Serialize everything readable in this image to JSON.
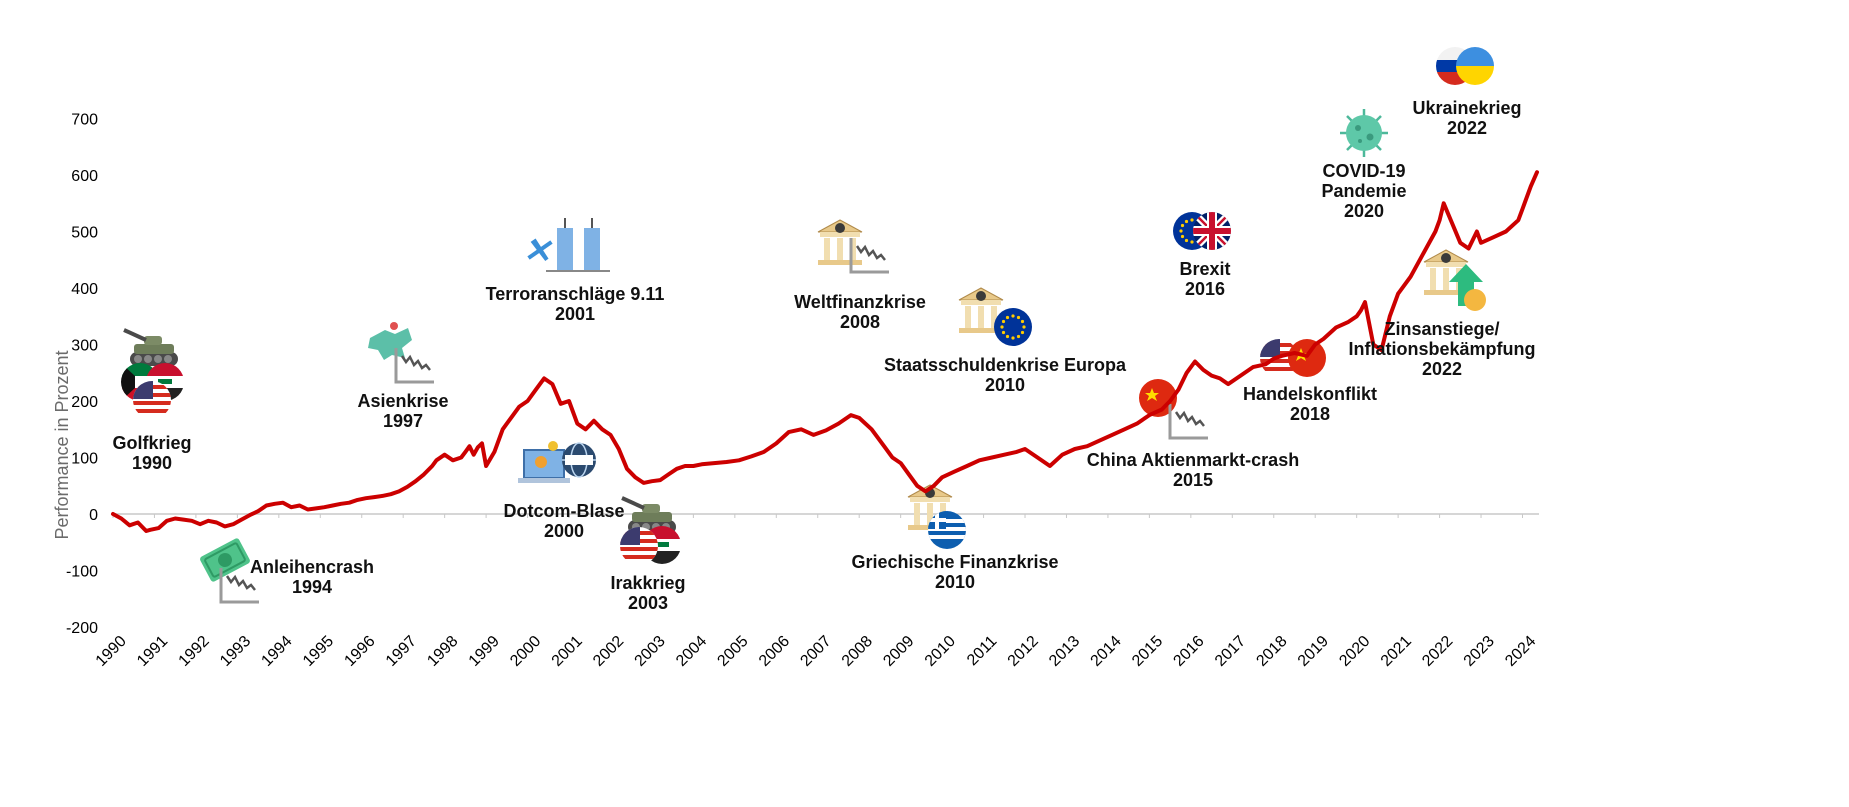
{
  "chart_data": {
    "type": "line",
    "ylabel": "Performance in Prozent",
    "ylim": [
      -200,
      700
    ],
    "yticks": [
      700,
      600,
      500,
      400,
      300,
      200,
      100,
      0,
      -100,
      -200
    ],
    "xlim": [
      1990,
      2024.35
    ],
    "xticks": [
      "1990",
      "1991",
      "1992",
      "1993",
      "1994",
      "1995",
      "1996",
      "1997",
      "1998",
      "1999",
      "2000",
      "2001",
      "2002",
      "2003",
      "2004",
      "2005",
      "2006",
      "2007",
      "2008",
      "2009",
      "2010",
      "2011",
      "2012",
      "2013",
      "2014",
      "2015",
      "2016",
      "2017",
      "2018",
      "2019",
      "2020",
      "2021",
      "2022",
      "2023",
      "2024"
    ],
    "grid": false,
    "line_color": "#cc0000",
    "series": [
      {
        "x": [
          1990.0,
          1990.2,
          1990.4,
          1990.6,
          1990.8,
          1990.9,
          1991.1,
          1991.3,
          1991.5,
          1991.7,
          1991.9,
          1992.1,
          1992.3,
          1992.5,
          1992.7,
          1992.9,
          1993.1,
          1993.3,
          1993.5,
          1993.7,
          1993.9,
          1994.1,
          1994.3,
          1994.5,
          1994.7,
          1994.9,
          1995.1,
          1995.3,
          1995.5,
          1995.7,
          1995.9,
          1996.1,
          1996.3,
          1996.5,
          1996.7,
          1996.9,
          1997.1,
          1997.3,
          1997.5,
          1997.7,
          1997.8,
          1998.0,
          1998.2,
          1998.4,
          1998.5,
          1998.6,
          1998.7,
          1998.8,
          1998.9,
          1999.0,
          1999.2,
          1999.4,
          1999.6,
          1999.8,
          2000.0,
          2000.2,
          2000.4,
          2000.6,
          2000.8,
          2001.0,
          2001.2,
          2001.4,
          2001.6,
          2001.8,
          2002.0,
          2002.2,
          2002.4,
          2002.6,
          2002.8,
          2003.0,
          2003.2,
          2003.4,
          2003.6,
          2003.8,
          2004.0,
          2004.2,
          2004.5,
          2004.8,
          2005.1,
          2005.4,
          2005.7,
          2006.0,
          2006.3,
          2006.6,
          2006.9,
          2007.2,
          2007.5,
          2007.8,
          2008.0,
          2008.3,
          2008.6,
          2008.8,
          2009.0,
          2009.2,
          2009.4,
          2009.6,
          2009.8,
          2010.0,
          2010.3,
          2010.6,
          2010.9,
          2011.2,
          2011.5,
          2011.8,
          2012.0,
          2012.3,
          2012.6,
          2012.9,
          2013.2,
          2013.5,
          2013.8,
          2014.1,
          2014.4,
          2014.7,
          2015.0,
          2015.3,
          2015.5,
          2015.7,
          2015.9,
          2016.1,
          2016.3,
          2016.5,
          2016.7,
          2016.9,
          2017.2,
          2017.5,
          2017.8,
          2018.0,
          2018.2,
          2018.5,
          2018.8,
          2019.0,
          2019.2,
          2019.5,
          2019.8,
          2020.0,
          2020.1,
          2020.2,
          2020.4,
          2020.6,
          2020.8,
          2021.0,
          2021.3,
          2021.6,
          2021.9,
          2022.0,
          2022.1,
          2022.3,
          2022.5,
          2022.7,
          2022.9,
          2023.0,
          2023.3,
          2023.6,
          2023.9,
          2024.0,
          2024.2,
          2024.35
        ],
        "values": [
          0,
          -8,
          -20,
          -15,
          -30,
          -28,
          -25,
          -12,
          -8,
          -10,
          -12,
          -18,
          -12,
          -15,
          -22,
          -18,
          -10,
          -2,
          5,
          15,
          18,
          20,
          12,
          15,
          8,
          10,
          12,
          15,
          18,
          20,
          25,
          28,
          30,
          32,
          35,
          40,
          48,
          58,
          70,
          85,
          95,
          105,
          95,
          100,
          110,
          120,
          105,
          118,
          125,
          85,
          110,
          150,
          170,
          190,
          200,
          220,
          240,
          230,
          195,
          200,
          160,
          150,
          165,
          150,
          140,
          115,
          80,
          65,
          55,
          58,
          60,
          70,
          80,
          85,
          85,
          88,
          90,
          92,
          95,
          102,
          110,
          125,
          145,
          150,
          140,
          148,
          160,
          175,
          170,
          150,
          120,
          100,
          90,
          70,
          50,
          40,
          50,
          65,
          75,
          85,
          95,
          100,
          105,
          110,
          115,
          100,
          85,
          105,
          115,
          120,
          130,
          140,
          150,
          160,
          175,
          185,
          200,
          220,
          250,
          270,
          255,
          245,
          240,
          230,
          245,
          260,
          265,
          275,
          280,
          285,
          280,
          300,
          310,
          330,
          340,
          350,
          360,
          375,
          300,
          290,
          350,
          390,
          420,
          460,
          500,
          520,
          550,
          515,
          480,
          470,
          500,
          480,
          490,
          500,
          520,
          540,
          580,
          605
        ]
      }
    ],
    "annotations": [
      {
        "label": "Golfkrieg",
        "year": "1990",
        "icon": "tank-kuwait-iraq-usa-flags-icon"
      },
      {
        "label": "Anleihencrash",
        "year": "1994",
        "icon": "money-crash-icon"
      },
      {
        "label": "Asienkrise",
        "year": "1997",
        "icon": "asia-map-crash-icon"
      },
      {
        "label": "Dotcom-Blase",
        "year": "2000",
        "icon": "laptop-www-gears-icon"
      },
      {
        "label": "Terroranschläge 9.11",
        "year": "2001",
        "icon": "twin-towers-plane-icon"
      },
      {
        "label": "Irakkrieg",
        "year": "2003",
        "icon": "tank-usa-iraq-flags-icon"
      },
      {
        "label": "Weltfinanzkrise",
        "year": "2008",
        "icon": "bank-crash-icon"
      },
      {
        "label": "Griechische Finanzkrise",
        "year": "2010",
        "icon": "bank-greece-flag-icon"
      },
      {
        "label": "Staatsschuldenkrise Europa",
        "year": "2010",
        "icon": "bank-eu-flag-icon"
      },
      {
        "label": "China Aktienmarkt-crash",
        "year": "2015",
        "icon": "china-flag-crash-icon"
      },
      {
        "label": "Brexit",
        "year": "2016",
        "icon": "eu-uk-flags-icon"
      },
      {
        "label": "Handelskonflikt",
        "year": "2018",
        "icon": "usa-china-flags-icon"
      },
      {
        "label": "COVID-19\nPandemie",
        "year": "2020",
        "icon": "virus-icon"
      },
      {
        "label": "Zinsanstiege/\nInflationsbekämpfung",
        "year": "2022",
        "icon": "bank-rate-up-icon"
      },
      {
        "label": "Ukrainekrieg",
        "year": "2022",
        "icon": "russia-ukraine-flags-icon"
      }
    ]
  }
}
